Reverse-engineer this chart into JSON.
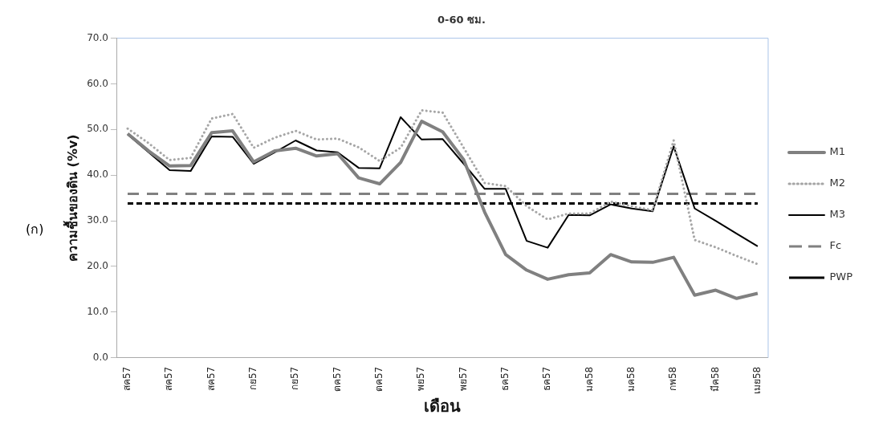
{
  "chart_data": {
    "type": "line",
    "title": "0-60 ซม.",
    "xlabel": "เดือน",
    "ylabel": "ความชื้นของดิน (%v)",
    "annotations": [
      "(ก)"
    ],
    "categories": [
      "สค57",
      null,
      "สค57",
      null,
      "สค57",
      null,
      "กย57",
      null,
      "กย57",
      null,
      "ตค57",
      null,
      "ตค57",
      null,
      "พย57",
      null,
      "พย57",
      null,
      "ธค57",
      null,
      "ธค57",
      null,
      "มค58",
      null,
      "มค58",
      null,
      "กพ58",
      null,
      "มีค58",
      null,
      "เมย58"
    ],
    "ylim": [
      0,
      70
    ],
    "yticks": [
      {
        "value": 0,
        "label": "0.0"
      },
      {
        "value": 10,
        "label": "10.0"
      },
      {
        "value": 20,
        "label": "20.0"
      },
      {
        "value": 30,
        "label": "30.0"
      },
      {
        "value": 40,
        "label": "40.0"
      },
      {
        "value": 50,
        "label": "50.0"
      },
      {
        "value": 60,
        "label": "60.0"
      },
      {
        "value": 70,
        "label": "70.0"
      }
    ],
    "grid": false,
    "legend": "right",
    "marker": "none",
    "series": [
      {
        "name": "M1",
        "color": "#808080",
        "line_style": "solid",
        "values": [
          49.1,
          45.3,
          42.0,
          42.1,
          49.3,
          49.7,
          42.9,
          45.3,
          45.9,
          44.2,
          44.7,
          39.4,
          38.1,
          42.8,
          51.8,
          49.5,
          43.4,
          31.9,
          22.6,
          19.2,
          17.2,
          18.2,
          18.6,
          22.6,
          21.0,
          20.9,
          22.0,
          13.7,
          14.8,
          13.0,
          14.1
        ]
      },
      {
        "name": "M2",
        "color": "#a6a6a6",
        "line_style": "dotted",
        "values": [
          50.2,
          47.0,
          43.3,
          43.8,
          52.4,
          53.4,
          46.0,
          48.2,
          49.7,
          47.8,
          48.0,
          46.1,
          43.1,
          46.0,
          54.2,
          53.7,
          46.0,
          38.3,
          37.6,
          33.2,
          30.3,
          31.6,
          31.6,
          34.2,
          33.2,
          32.3,
          47.6,
          25.8,
          24.2,
          22.3,
          20.5
        ]
      },
      {
        "name": "M3",
        "color": "#000000",
        "line_style": "solid",
        "values": [
          48.9,
          45.0,
          41.1,
          40.9,
          48.5,
          48.4,
          42.5,
          45.0,
          47.6,
          45.4,
          45.0,
          41.6,
          41.5,
          52.7,
          47.8,
          47.9,
          42.5,
          37.0,
          37.0,
          25.6,
          24.1,
          31.3,
          31.2,
          33.6,
          32.7,
          32.1,
          46.3,
          32.7,
          30.0,
          27.2,
          24.4
        ]
      },
      {
        "name": "Fc",
        "color": "#808080",
        "line_style": "dashed",
        "values": [
          35.9,
          35.9,
          35.9,
          35.9,
          35.9,
          35.9,
          35.9,
          35.9,
          35.9,
          35.9,
          35.9,
          35.9,
          35.9,
          35.9,
          35.9,
          35.9,
          35.9,
          35.9,
          35.9,
          35.9,
          35.9,
          35.9,
          35.9,
          35.9,
          35.9,
          35.9,
          35.9,
          35.9,
          35.9,
          35.9,
          35.9
        ]
      },
      {
        "name": "PWP",
        "color": "#000000",
        "line_style": "dashed",
        "values": [
          33.8,
          33.8,
          33.8,
          33.8,
          33.8,
          33.8,
          33.8,
          33.8,
          33.8,
          33.8,
          33.8,
          33.8,
          33.8,
          33.8,
          33.8,
          33.8,
          33.8,
          33.8,
          33.8,
          33.8,
          33.8,
          33.8,
          33.8,
          33.8,
          33.8,
          33.8,
          33.8,
          33.8,
          33.8,
          33.8,
          33.8
        ]
      }
    ]
  }
}
